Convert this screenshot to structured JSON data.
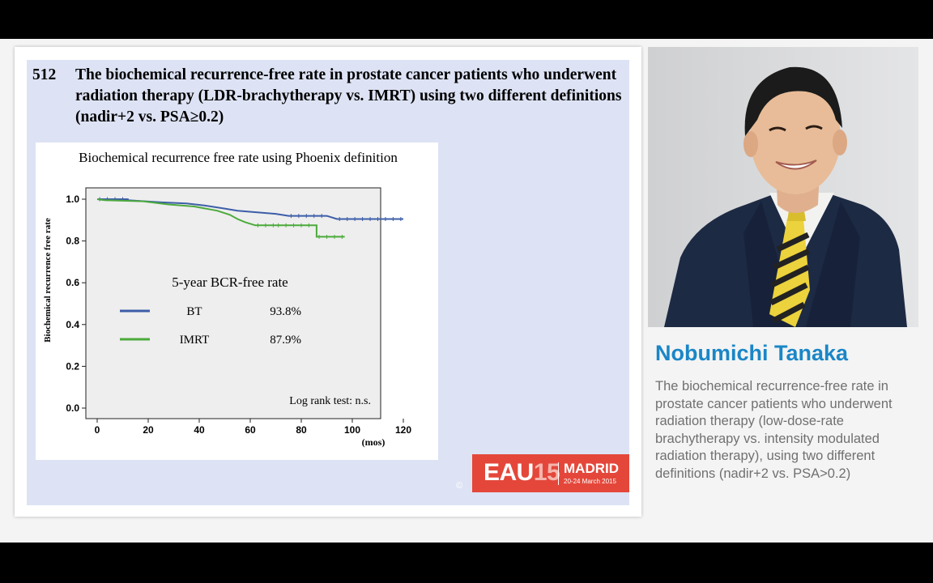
{
  "slide": {
    "number": "512",
    "title": "The biochemical recurrence-free rate in prostate cancer patients who underwent radiation therapy (LDR-brachytherapy vs. IMRT) using two different definitions (nadir+2 vs. PSA≥0.2)"
  },
  "chart_data": {
    "type": "line",
    "title": "Biochemical recurrence free rate using Phoenix definition",
    "ylabel": "Biochemical recurrence free rate",
    "xlabel": "(mos)",
    "xlim": [
      0,
      120
    ],
    "ylim": [
      0,
      1
    ],
    "x_ticks": [
      0,
      20,
      40,
      60,
      80,
      100,
      120
    ],
    "y_ticks": [
      "0.0",
      "0.2",
      "0.4",
      "0.6",
      "0.8",
      "1.0"
    ],
    "grid": false,
    "legend_title": "5-year BCR-free rate",
    "series": [
      {
        "name": "BT",
        "rate": "93.8%",
        "color": "#3c5ea8",
        "points": [
          [
            0,
            1.0
          ],
          [
            12,
            1.0
          ],
          [
            12,
            0.995
          ],
          [
            25,
            0.985
          ],
          [
            35,
            0.98
          ],
          [
            42,
            0.97
          ],
          [
            50,
            0.955
          ],
          [
            55,
            0.945
          ],
          [
            70,
            0.93
          ],
          [
            75,
            0.92
          ],
          [
            90,
            0.92
          ],
          [
            94,
            0.905
          ],
          [
            120,
            0.905
          ]
        ]
      },
      {
        "name": "IMRT",
        "rate": "87.9%",
        "color": "#4caa3c",
        "points": [
          [
            0,
            1.0
          ],
          [
            3,
            0.995
          ],
          [
            18,
            0.99
          ],
          [
            28,
            0.975
          ],
          [
            38,
            0.965
          ],
          [
            47,
            0.945
          ],
          [
            52,
            0.925
          ],
          [
            55,
            0.905
          ],
          [
            58,
            0.89
          ],
          [
            62,
            0.875
          ],
          [
            70,
            0.875
          ],
          [
            86,
            0.875
          ],
          [
            86,
            0.82
          ],
          [
            97,
            0.82
          ]
        ]
      }
    ],
    "annotation": "Log rank test: n.s."
  },
  "logo": {
    "eau": "EAU",
    "year": "15",
    "city": "MADRID",
    "dates": "20-24 March 2015",
    "copyright": "©"
  },
  "speaker": {
    "name": "Nobumichi Tanaka",
    "description": "The biochemical recurrence-free rate in prostate cancer patients who underwent radiation therapy (low-dose-rate brachytherapy vs. intensity modulated radiation therapy), using two different definitions (nadir+2 vs. PSA>0.2)"
  },
  "colors": {
    "accent_blue": "#1a86c7",
    "slide_bg": "#dde3f4",
    "eau_red": "#e4473a"
  }
}
